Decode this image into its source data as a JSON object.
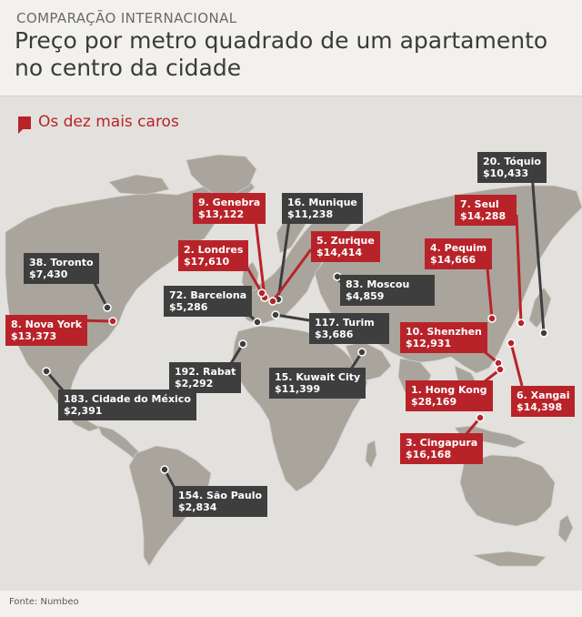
{
  "header": {
    "kicker": "COMPARAÇÃO INTERNACIONAL",
    "title": "Preço por metro quadrado de um apartamento no centro da cidade"
  },
  "legend": {
    "text": "Os dez mais caros"
  },
  "footer": {
    "source": "Fonte: Numbeo"
  },
  "colors": {
    "top10": "#b8232a",
    "other": "#3e3e3e",
    "land": "#a9a59c",
    "sea": "#e3e1dd"
  },
  "cities": [
    {
      "id": "toquio",
      "name": "20. Tóquio",
      "price": "$10,433",
      "top10": false
    },
    {
      "id": "genebra",
      "name": "9. Genebra",
      "price": "$13,122",
      "top10": true
    },
    {
      "id": "munique",
      "name": "16. Munique",
      "price": "$11,238",
      "top10": false
    },
    {
      "id": "seul",
      "name": "7. Seul",
      "price": "$14,288",
      "top10": true
    },
    {
      "id": "londres",
      "name": "2. Londres",
      "price": "$17,610",
      "top10": true
    },
    {
      "id": "zurique",
      "name": "5. Zurique",
      "price": "$14,414",
      "top10": true
    },
    {
      "id": "pequim",
      "name": "4. Pequim",
      "price": "$14,666",
      "top10": true
    },
    {
      "id": "toronto",
      "name": "38. Toronto",
      "price": "$7,430",
      "top10": false
    },
    {
      "id": "barcelona",
      "name": "72. Barcelona",
      "price": "$5,286",
      "top10": false
    },
    {
      "id": "moscou",
      "name": "83. Moscou",
      "price": "$4,859",
      "top10": false
    },
    {
      "id": "novayork",
      "name": "8. Nova York",
      "price": "$13,373",
      "top10": true
    },
    {
      "id": "turim",
      "name": "117. Turim",
      "price": "$3,686",
      "top10": false
    },
    {
      "id": "shenzhen",
      "name": "10. Shenzhen",
      "price": "$12,931",
      "top10": true
    },
    {
      "id": "rabat",
      "name": "192. Rabat",
      "price": "$2,292",
      "top10": false
    },
    {
      "id": "kuwait",
      "name": "15. Kuwait City",
      "price": "$11,399",
      "top10": false
    },
    {
      "id": "hongkong",
      "name": "1. Hong Kong",
      "price": "$28,169",
      "top10": true
    },
    {
      "id": "mexico",
      "name": "183. Cidade do México",
      "price": "$2,391",
      "top10": false
    },
    {
      "id": "xangai",
      "name": "6. Xangai",
      "price": "$14,398",
      "top10": true
    },
    {
      "id": "cingapura",
      "name": "3. Cingapura",
      "price": "$16,168",
      "top10": true
    },
    {
      "id": "saopaulo",
      "name": "154. São Paulo",
      "price": "$2,834",
      "top10": false
    }
  ]
}
